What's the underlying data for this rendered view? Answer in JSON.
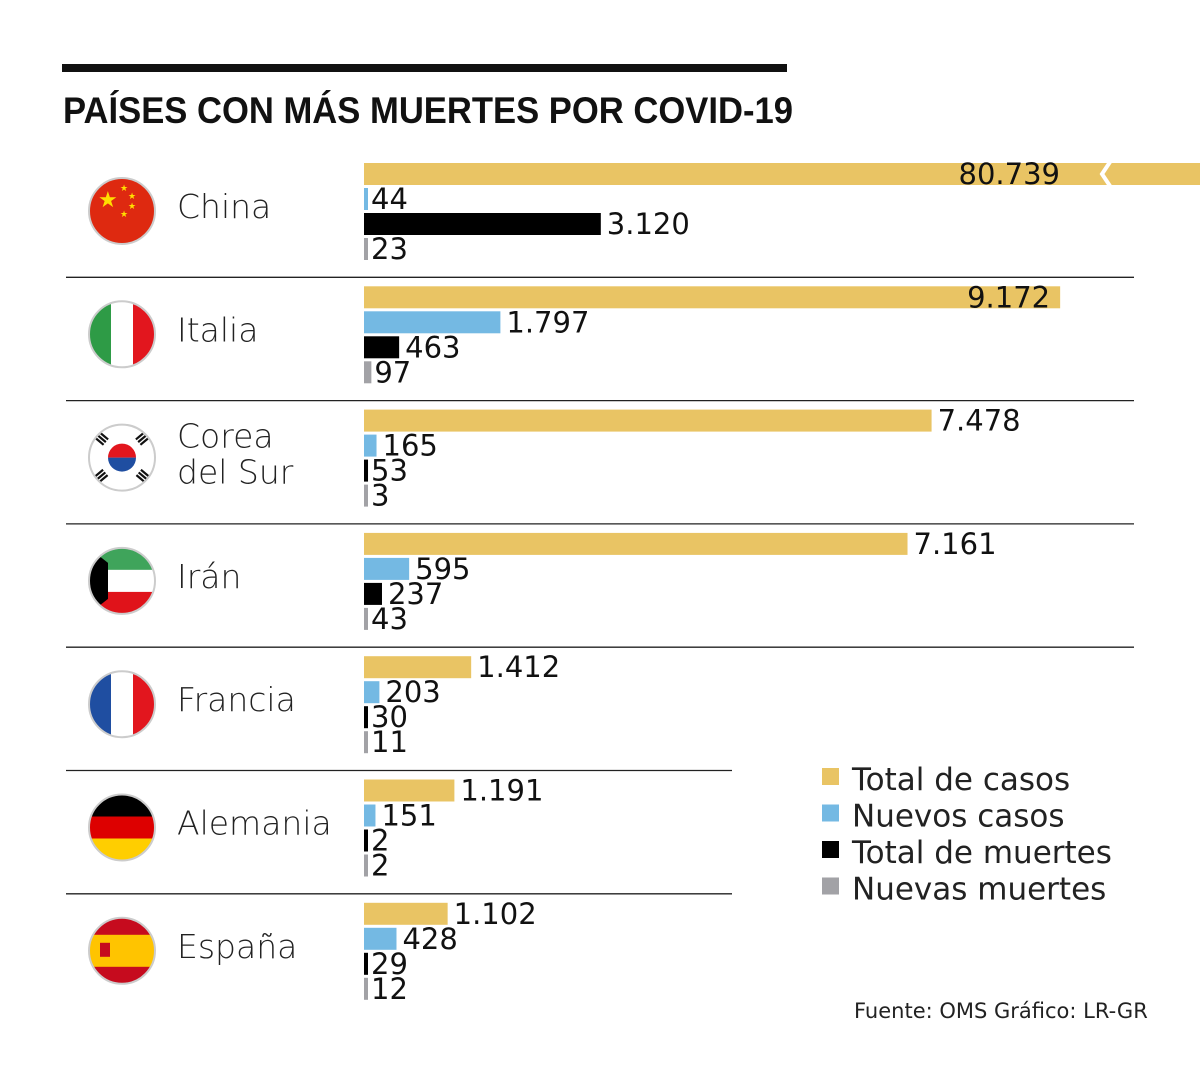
{
  "title": "PAÍSES CON MÁS MUERTES POR COVID-19",
  "source": "Fuente: OMS",
  "credit": "Gráfico: LR-GR",
  "colors": {
    "total_casos": "#E9C464",
    "nuevos_casos": "#74B9E3",
    "total_muertes": "#000000",
    "nuevas_muertes": "#A2A2A6"
  },
  "chart_data": {
    "type": "bar",
    "orientation": "horizontal",
    "title": "PAÍSES CON MÁS MUERTES POR COVID-19",
    "categories": [
      [
        "China"
      ],
      [
        "Italia"
      ],
      [
        "Corea",
        "del Sur"
      ],
      [
        "Irán"
      ],
      [
        "Francia"
      ],
      [
        "Alemania"
      ],
      [
        "España"
      ]
    ],
    "series": [
      {
        "name": "Total de casos",
        "values": [
          80739,
          9172,
          7478,
          7161,
          1412,
          1191,
          1102
        ],
        "labels": [
          "80.739",
          "9.172",
          "7.478",
          "7.161",
          "1.412",
          "1.191",
          "1.102"
        ]
      },
      {
        "name": "Nuevos casos",
        "values": [
          44,
          1797,
          165,
          595,
          203,
          151,
          428
        ],
        "labels": [
          "44",
          "1.797",
          "165",
          "595",
          "203",
          "151",
          "428"
        ]
      },
      {
        "name": "Total de muertes",
        "values": [
          3120,
          463,
          53,
          237,
          30,
          2,
          29
        ],
        "labels": [
          "3.120",
          "463",
          "53",
          "237",
          "30",
          "2",
          "29"
        ]
      },
      {
        "name": "Nuevas muertes",
        "values": [
          23,
          97,
          3,
          43,
          11,
          2,
          12
        ],
        "labels": [
          "23",
          "97",
          "3",
          "43",
          "11",
          "2",
          "12"
        ]
      }
    ],
    "axis_break": {
      "category": "China",
      "series": "Total de casos"
    },
    "legend_position": "bottom-right",
    "grid": false,
    "flags": [
      "china-flag",
      "italy-flag",
      "south-korea-flag",
      "iran-flag",
      "france-flag",
      "germany-flag",
      "spain-flag"
    ]
  }
}
